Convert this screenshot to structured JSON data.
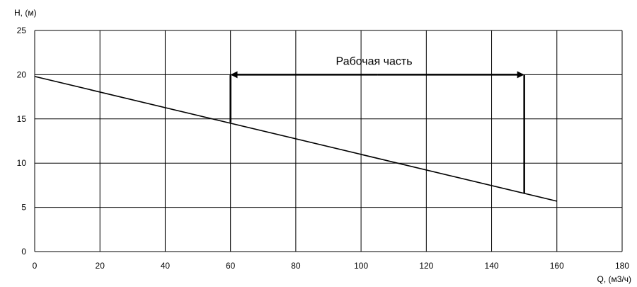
{
  "chart_data": {
    "type": "line",
    "title": "",
    "xlabel": "Q, (м3/ч)",
    "ylabel": "H, (м)",
    "xlim": [
      0,
      180
    ],
    "ylim": [
      0,
      25
    ],
    "x_ticks": [
      0,
      20,
      40,
      60,
      80,
      100,
      120,
      140,
      160,
      180
    ],
    "y_ticks": [
      0,
      5,
      10,
      15,
      20,
      25
    ],
    "x_tick_labels": [
      "0",
      "20",
      "40",
      "60",
      "80",
      "100",
      "120",
      "140",
      "160",
      "180"
    ],
    "y_tick_labels": [
      "0",
      "5",
      "10",
      "15",
      "20",
      "25"
    ],
    "grid": true,
    "series": [
      {
        "x": [
          0,
          160
        ],
        "y": [
          19.8,
          5.7
        ]
      }
    ],
    "annotations": {
      "working_range": {
        "label": "Рабочая часть",
        "x_start": 60,
        "x_end": 150,
        "y_arrow": 20,
        "y_start_curve": 14.6,
        "y_end_curve": 6.6
      }
    },
    "colors": {
      "line": "#000000",
      "grid": "#000000"
    }
  }
}
